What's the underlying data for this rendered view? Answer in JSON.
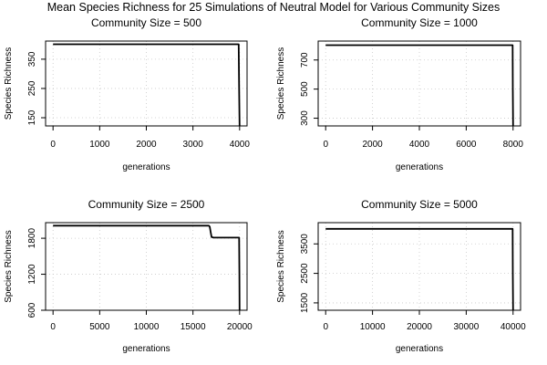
{
  "main_title": "Mean Species Richness for 25 Simulations of Neutral Model for Various Community Sizes",
  "colors": {
    "line": "#000000",
    "grid": "#c8c8c8",
    "frame": "#000000",
    "background": "#ffffff"
  },
  "chart_data": [
    {
      "type": "line",
      "title": "Community Size = 500",
      "xlabel": "generations",
      "ylabel": "Species Richness",
      "xlim": [
        -160,
        4160
      ],
      "ylim": [
        122,
        412
      ],
      "xticks": [
        0,
        1000,
        2000,
        3000,
        4000
      ],
      "yticks": [
        150,
        250,
        350
      ],
      "grid": true,
      "series": [
        {
          "x": [
            0,
            500,
            1000,
            1500,
            2000,
            2500,
            3000,
            3500,
            3980,
            3990,
            4000
          ],
          "y": [
            401,
            401,
            401,
            401,
            401,
            401,
            401,
            401,
            401,
            250,
            122
          ]
        }
      ]
    },
    {
      "type": "line",
      "title": "Community Size = 1000",
      "xlabel": "generations",
      "ylabel": "Species Richness",
      "xlim": [
        -320,
        8320
      ],
      "ylim": [
        247,
        830
      ],
      "xticks": [
        0,
        2000,
        4000,
        6000,
        8000
      ],
      "yticks": [
        300,
        500,
        700
      ],
      "grid": true,
      "series": [
        {
          "x": [
            0,
            1000,
            2000,
            3000,
            4000,
            5000,
            6000,
            7000,
            7980,
            7990,
            8000
          ],
          "y": [
            802,
            802,
            802,
            802,
            802,
            802,
            802,
            802,
            802,
            500,
            247
          ]
        }
      ]
    },
    {
      "type": "line",
      "title": "Community Size = 2500",
      "xlabel": "generations",
      "ylabel": "Species Richness",
      "xlim": [
        -800,
        20800
      ],
      "ylim": [
        600,
        2060
      ],
      "xticks": [
        0,
        5000,
        10000,
        15000,
        20000
      ],
      "yticks": [
        600,
        1200,
        1800
      ],
      "grid": true,
      "series": [
        {
          "x": [
            0,
            5000,
            10000,
            15000,
            16700,
            16800,
            16900,
            17000,
            17200,
            18000,
            19000,
            19950,
            19980,
            20000
          ],
          "y": [
            2010,
            2010,
            2010,
            2010,
            2010,
            1990,
            1900,
            1820,
            1810,
            1810,
            1810,
            1810,
            1200,
            600
          ]
        }
      ]
    },
    {
      "type": "line",
      "title": "Community Size = 5000",
      "xlabel": "generations",
      "ylabel": "Species Richness",
      "xlim": [
        -1600,
        41600
      ],
      "ylim": [
        1250,
        4220
      ],
      "xticks": [
        0,
        10000,
        20000,
        30000,
        40000
      ],
      "yticks": [
        1500,
        2500,
        3500
      ],
      "grid": true,
      "series": [
        {
          "x": [
            0,
            5000,
            10000,
            15000,
            20000,
            25000,
            30000,
            35000,
            39900,
            39950,
            40000
          ],
          "y": [
            4010,
            4010,
            4010,
            4010,
            4010,
            4010,
            4010,
            4010,
            4010,
            2500,
            1250
          ]
        }
      ]
    }
  ]
}
